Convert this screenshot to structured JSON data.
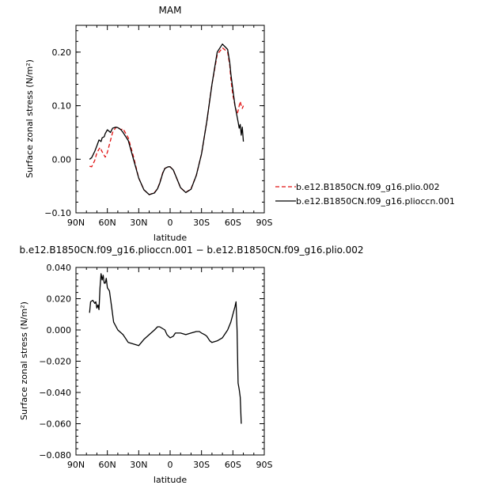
{
  "chart_data": [
    {
      "type": "line",
      "title": "MAM",
      "xlabel": "latitude",
      "ylabel": "Surface zonal stress (N/m²)",
      "xticks": [
        "90N",
        "60N",
        "30N",
        "0",
        "30S",
        "60S",
        "90S"
      ],
      "xlim": [
        90,
        -90
      ],
      "ylim": [
        -0.1,
        0.25
      ],
      "yticks": [
        {
          "value": -0.1,
          "label": "−0.10"
        },
        {
          "value": 0.0,
          "label": "0.00"
        },
        {
          "value": 0.1,
          "label": "0.10"
        },
        {
          "value": 0.2,
          "label": "0.20"
        }
      ],
      "legend_position": "right",
      "series": [
        {
          "name": "b.e12.B1850CN.f09_g16.plio.002",
          "color": "#e01010",
          "dash": "dashed",
          "x": [
            77,
            75,
            72,
            70,
            67,
            65,
            62,
            60,
            57,
            55,
            52,
            50,
            47,
            45,
            40,
            35,
            30,
            25,
            20,
            15,
            12,
            10,
            7,
            5,
            2,
            0,
            -3,
            -6,
            -10,
            -15,
            -20,
            -25,
            -30,
            -35,
            -40,
            -45,
            -50,
            -55,
            -57,
            -58,
            -60,
            -62,
            -64,
            -65,
            -66,
            -67,
            -68,
            -69,
            -70
          ],
          "y": [
            -0.013,
            -0.014,
            -0.002,
            0.012,
            0.022,
            0.014,
            0.004,
            0.013,
            0.035,
            0.05,
            0.059,
            0.06,
            0.055,
            0.057,
            0.04,
            0.005,
            -0.035,
            -0.057,
            -0.066,
            -0.062,
            -0.055,
            -0.044,
            -0.025,
            -0.017,
            -0.014,
            -0.014,
            -0.02,
            -0.034,
            -0.053,
            -0.062,
            -0.055,
            -0.03,
            0.01,
            0.07,
            0.14,
            0.195,
            0.208,
            0.2,
            0.175,
            0.15,
            0.12,
            0.1,
            0.085,
            0.09,
            0.1,
            0.108,
            0.1,
            0.095,
            0.1
          ]
        },
        {
          "name": "b.e12.B1850CN.f09_g16.pliocc​n.001",
          "color": "#000000",
          "dash": "solid",
          "x": [
            77,
            75,
            72,
            70,
            68,
            66,
            65,
            63,
            62,
            60,
            57,
            55,
            52,
            50,
            47,
            45,
            40,
            35,
            30,
            25,
            20,
            15,
            12,
            10,
            7,
            5,
            2,
            0,
            -3,
            -6,
            -10,
            -15,
            -20,
            -25,
            -30,
            -35,
            -40,
            -45,
            -50,
            -55,
            -57,
            -58,
            -60,
            -62,
            -64,
            -65,
            -66,
            -67,
            -68,
            -69,
            -70
          ],
          "y": [
            0.0,
            0.003,
            0.015,
            0.025,
            0.036,
            0.033,
            0.04,
            0.042,
            0.048,
            0.055,
            0.05,
            0.058,
            0.06,
            0.059,
            0.055,
            0.05,
            0.035,
            0.0,
            -0.035,
            -0.057,
            -0.066,
            -0.063,
            -0.055,
            -0.045,
            -0.026,
            -0.017,
            -0.014,
            -0.014,
            -0.02,
            -0.034,
            -0.053,
            -0.062,
            -0.056,
            -0.03,
            0.01,
            0.07,
            0.14,
            0.2,
            0.215,
            0.205,
            0.18,
            0.16,
            0.13,
            0.1,
            0.08,
            0.07,
            0.058,
            0.065,
            0.045,
            0.06,
            0.033
          ]
        }
      ]
    },
    {
      "type": "line",
      "title": "b.e12.B1850CN.f09_g16.plioccn.001 − b.e12.B1850CN.f09_g16.plio.002",
      "xlabel": "latitude",
      "ylabel": "Surface zonal stress (N/m²)",
      "xticks": [
        "90N",
        "60N",
        "30N",
        "0",
        "30S",
        "60S",
        "90S"
      ],
      "xlim": [
        90,
        -90
      ],
      "ylim": [
        -0.08,
        0.04
      ],
      "yticks": [
        {
          "value": -0.08,
          "label": "−0.080"
        },
        {
          "value": -0.06,
          "label": "−0.060"
        },
        {
          "value": -0.04,
          "label": "−0.040"
        },
        {
          "value": -0.02,
          "label": "−0.020"
        },
        {
          "value": 0.0,
          "label": "0.000"
        },
        {
          "value": 0.02,
          "label": "0.020"
        },
        {
          "value": 0.04,
          "label": "0.040"
        }
      ],
      "series": [
        {
          "color": "#000000",
          "dash": "solid",
          "x": [
            77,
            76,
            74,
            72,
            71,
            70,
            69,
            68,
            67,
            66,
            65,
            64,
            63,
            62,
            61,
            60,
            58,
            56,
            54,
            50,
            45,
            40,
            35,
            30,
            25,
            20,
            15,
            12,
            10,
            5,
            3,
            0,
            -3,
            -5,
            -10,
            -15,
            -20,
            -25,
            -28,
            -30,
            -33,
            -35,
            -38,
            -40,
            -45,
            -50,
            -55,
            -58,
            -60,
            -62,
            -63,
            -64,
            -65,
            -66,
            -67,
            -68
          ],
          "y": [
            0.011,
            0.018,
            0.019,
            0.017,
            0.018,
            0.014,
            0.016,
            0.013,
            0.027,
            0.036,
            0.032,
            0.035,
            0.03,
            0.03,
            0.033,
            0.027,
            0.025,
            0.015,
            0.005,
            0.0,
            -0.003,
            -0.008,
            -0.009,
            -0.01,
            -0.006,
            -0.003,
            0.0,
            0.002,
            0.002,
            0.0,
            -0.003,
            -0.005,
            -0.004,
            -0.002,
            -0.002,
            -0.003,
            -0.002,
            -0.001,
            -0.001,
            -0.002,
            -0.003,
            -0.004,
            -0.007,
            -0.008,
            -0.007,
            -0.005,
            0.0,
            0.005,
            0.01,
            0.015,
            0.018,
            0.0,
            -0.034,
            -0.038,
            -0.043,
            -0.06
          ]
        }
      ]
    }
  ]
}
